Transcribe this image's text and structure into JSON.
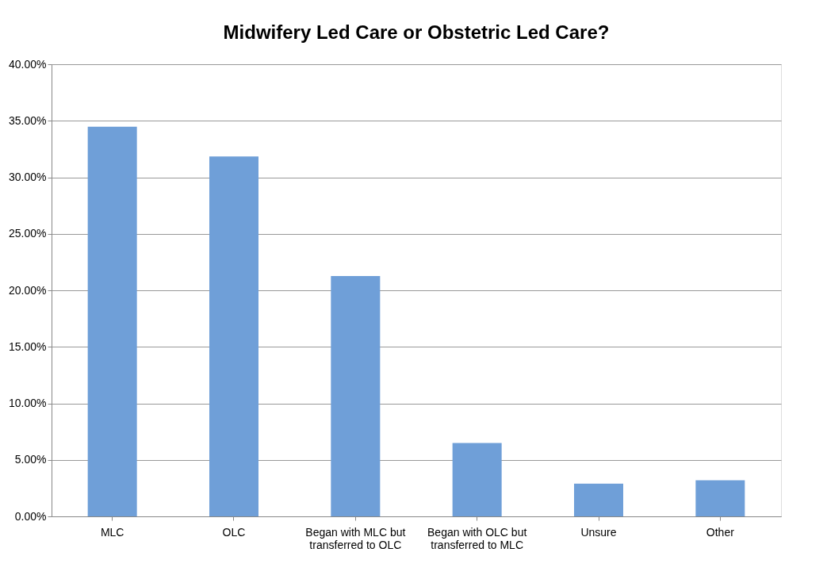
{
  "chart_data": {
    "type": "bar",
    "title": "Midwifery Led Care or Obstetric Led Care?",
    "categories": [
      "MLC",
      "OLC",
      "Began with MLC but transferred to OLC",
      "Began with OLC but transferred to MLC",
      "Unsure",
      "Other"
    ],
    "values": [
      34.47,
      31.84,
      21.26,
      6.5,
      2.9,
      3.2
    ],
    "color": "#6f9fd8",
    "ylim": [
      0,
      40
    ],
    "yticks": [
      {
        "value": 0,
        "label": "0.00%"
      },
      {
        "value": 5,
        "label": "5.00%"
      },
      {
        "value": 10,
        "label": "10.00%"
      },
      {
        "value": 15,
        "label": "15.00%"
      },
      {
        "value": 20,
        "label": "20.00%"
      },
      {
        "value": 25,
        "label": "25.00%"
      },
      {
        "value": 30,
        "label": "30.00%"
      },
      {
        "value": 35,
        "label": "35.00%"
      },
      {
        "value": 40,
        "label": "40.00%"
      }
    ],
    "grid": "y"
  }
}
